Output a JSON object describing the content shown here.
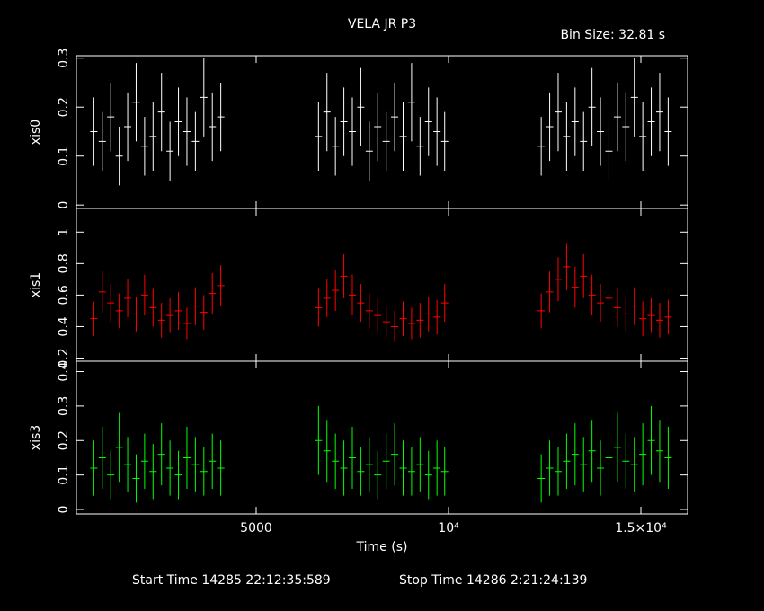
{
  "title": "VELA JR P3",
  "bin_size": "Bin Size: 32.81 s",
  "start_time": "Start Time 14285 22:12:35:589",
  "stop_time": "Stop Time 14286  2:21:24:139",
  "chart_data": [
    {
      "type": "scatter",
      "y_label": "xis0",
      "color": "#ffffff",
      "xlim": [
        327,
        16215
      ],
      "ylim": [
        -0.007,
        0.305
      ],
      "yticks": [
        0,
        0.1,
        0.2,
        0.3
      ],
      "x": [
        780,
        1000,
        1220,
        1440,
        1660,
        1880,
        2100,
        2320,
        2540,
        2760,
        2980,
        3200,
        3420,
        3640,
        3860,
        4080,
        6620,
        6840,
        7060,
        7280,
        7500,
        7720,
        7940,
        8160,
        8380,
        8600,
        8820,
        9040,
        9260,
        9480,
        9700,
        9900,
        12410,
        12630,
        12850,
        13070,
        13290,
        13510,
        13730,
        13950,
        14170,
        14390,
        14610,
        14830,
        15050,
        15270,
        15490,
        15710
      ],
      "values": [
        0.15,
        0.13,
        0.18,
        0.1,
        0.16,
        0.21,
        0.12,
        0.14,
        0.19,
        0.11,
        0.17,
        0.15,
        0.13,
        0.22,
        0.16,
        0.18,
        0.14,
        0.19,
        0.12,
        0.17,
        0.15,
        0.2,
        0.11,
        0.16,
        0.13,
        0.18,
        0.14,
        0.21,
        0.12,
        0.17,
        0.15,
        0.13,
        0.12,
        0.16,
        0.19,
        0.14,
        0.17,
        0.13,
        0.2,
        0.15,
        0.11,
        0.18,
        0.16,
        0.22,
        0.14,
        0.17,
        0.19,
        0.15
      ],
      "errors": [
        0.07,
        0.06,
        0.07,
        0.06,
        0.07,
        0.08,
        0.06,
        0.07,
        0.08,
        0.06,
        0.07,
        0.07,
        0.06,
        0.08,
        0.07,
        0.07,
        0.07,
        0.08,
        0.06,
        0.07,
        0.07,
        0.08,
        0.06,
        0.07,
        0.06,
        0.07,
        0.07,
        0.08,
        0.06,
        0.07,
        0.07,
        0.06,
        0.06,
        0.07,
        0.08,
        0.07,
        0.07,
        0.06,
        0.08,
        0.07,
        0.06,
        0.07,
        0.07,
        0.08,
        0.07,
        0.07,
        0.08,
        0.07
      ]
    },
    {
      "type": "scatter",
      "y_label": "xis1",
      "color": "#ff0000",
      "xlim": [
        327,
        16215
      ],
      "ylim": [
        0.18,
        1.15
      ],
      "yticks": [
        0.2,
        0.4,
        0.6,
        0.8,
        1
      ],
      "x": [
        780,
        1000,
        1220,
        1440,
        1660,
        1880,
        2100,
        2320,
        2540,
        2760,
        2980,
        3200,
        3420,
        3640,
        3860,
        4080,
        6620,
        6840,
        7060,
        7280,
        7500,
        7720,
        7940,
        8160,
        8380,
        8600,
        8820,
        9040,
        9260,
        9480,
        9700,
        9900,
        12410,
        12630,
        12850,
        13070,
        13290,
        13510,
        13730,
        13950,
        14170,
        14390,
        14610,
        14830,
        15050,
        15270,
        15490,
        15710
      ],
      "values": [
        0.45,
        0.62,
        0.55,
        0.5,
        0.58,
        0.48,
        0.6,
        0.52,
        0.44,
        0.47,
        0.5,
        0.42,
        0.53,
        0.49,
        0.61,
        0.66,
        0.52,
        0.58,
        0.63,
        0.72,
        0.6,
        0.55,
        0.5,
        0.47,
        0.43,
        0.4,
        0.45,
        0.42,
        0.44,
        0.48,
        0.46,
        0.55,
        0.5,
        0.62,
        0.7,
        0.78,
        0.65,
        0.72,
        0.6,
        0.55,
        0.58,
        0.52,
        0.48,
        0.53,
        0.45,
        0.47,
        0.44,
        0.46
      ],
      "errors": [
        0.11,
        0.13,
        0.12,
        0.11,
        0.12,
        0.11,
        0.13,
        0.12,
        0.11,
        0.11,
        0.12,
        0.1,
        0.12,
        0.11,
        0.13,
        0.13,
        0.12,
        0.12,
        0.13,
        0.14,
        0.13,
        0.12,
        0.11,
        0.11,
        0.1,
        0.1,
        0.11,
        0.1,
        0.11,
        0.11,
        0.11,
        0.12,
        0.11,
        0.13,
        0.14,
        0.15,
        0.13,
        0.14,
        0.13,
        0.12,
        0.12,
        0.12,
        0.11,
        0.12,
        0.11,
        0.11,
        0.11,
        0.11
      ]
    },
    {
      "type": "scatter",
      "y_label": "xis3",
      "x_label": "Time (s)",
      "color": "#00ff00",
      "xlim": [
        327,
        16215
      ],
      "ylim": [
        -0.013,
        0.43
      ],
      "yticks": [
        0,
        0.1,
        0.2,
        0.3,
        0.4
      ],
      "xticks": [
        5000,
        {
          "value": 10000,
          "label": "10⁴"
        },
        {
          "value": 15000,
          "label": "1.5×10⁴"
        }
      ],
      "x": [
        780,
        1000,
        1220,
        1440,
        1660,
        1880,
        2100,
        2320,
        2540,
        2760,
        2980,
        3200,
        3420,
        3640,
        3860,
        4080,
        6620,
        6840,
        7060,
        7280,
        7500,
        7720,
        7940,
        8160,
        8380,
        8600,
        8820,
        9040,
        9260,
        9480,
        9700,
        9900,
        12410,
        12630,
        12850,
        13070,
        13290,
        13510,
        13730,
        13950,
        14170,
        14390,
        14610,
        14830,
        15050,
        15270,
        15490,
        15710
      ],
      "values": [
        0.12,
        0.15,
        0.1,
        0.18,
        0.13,
        0.09,
        0.14,
        0.11,
        0.16,
        0.12,
        0.1,
        0.15,
        0.13,
        0.11,
        0.14,
        0.12,
        0.2,
        0.17,
        0.14,
        0.12,
        0.15,
        0.11,
        0.13,
        0.1,
        0.14,
        0.16,
        0.12,
        0.11,
        0.13,
        0.1,
        0.12,
        0.11,
        0.09,
        0.12,
        0.11,
        0.14,
        0.16,
        0.13,
        0.17,
        0.12,
        0.15,
        0.18,
        0.14,
        0.13,
        0.16,
        0.2,
        0.17,
        0.15
      ],
      "errors": [
        0.08,
        0.09,
        0.07,
        0.1,
        0.08,
        0.07,
        0.08,
        0.08,
        0.09,
        0.08,
        0.07,
        0.09,
        0.08,
        0.07,
        0.08,
        0.08,
        0.1,
        0.09,
        0.08,
        0.08,
        0.09,
        0.07,
        0.08,
        0.07,
        0.08,
        0.09,
        0.08,
        0.07,
        0.08,
        0.07,
        0.08,
        0.07,
        0.07,
        0.08,
        0.07,
        0.08,
        0.09,
        0.08,
        0.09,
        0.08,
        0.09,
        0.1,
        0.08,
        0.08,
        0.09,
        0.1,
        0.09,
        0.09
      ]
    }
  ]
}
